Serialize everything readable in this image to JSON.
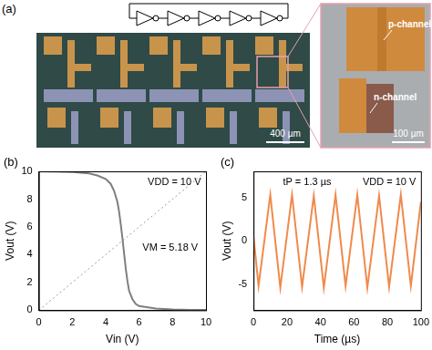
{
  "panel_a": {
    "label": "(a)",
    "inverters": 5,
    "main_scale_bar": "400 µm",
    "inset_scale_bar": "100 µm",
    "inset_labels": [
      "p-channel",
      "n-channel"
    ]
  },
  "chart_data": [
    {
      "type": "line",
      "panel_label": "(b)",
      "x_label": "Vin (V)",
      "y_label": "Vout (V)",
      "annotations": [
        "VDD = 10 V",
        "VM = 5.18 V"
      ],
      "xlim": [
        0,
        10
      ],
      "ylim": [
        0,
        10
      ],
      "xticks": [
        0,
        2,
        4,
        6,
        8,
        10
      ],
      "yticks": [
        0,
        2,
        4,
        6,
        8,
        10
      ],
      "grid": false,
      "series": [
        {
          "color": "#7f7f7f",
          "line_style": "solid",
          "x": [
            0,
            1,
            2,
            3,
            3.5,
            4,
            4.3,
            4.5,
            4.7,
            4.8,
            4.9,
            5.0,
            5.1,
            5.2,
            5.3,
            5.4,
            5.6,
            5.8,
            6,
            7,
            8,
            9,
            10
          ],
          "values": [
            10,
            9.98,
            9.95,
            9.85,
            9.7,
            9.45,
            9.1,
            8.6,
            7.8,
            7.1,
            6.2,
            5.2,
            4.1,
            3.0,
            2.1,
            1.4,
            0.8,
            0.45,
            0.3,
            0.12,
            0.06,
            0.03,
            0.02
          ]
        },
        {
          "color": "#9a9a9a",
          "line_style": "dotted",
          "x": [
            0,
            10
          ],
          "values": [
            0,
            10
          ]
        }
      ]
    },
    {
      "type": "line",
      "panel_label": "(c)",
      "x_label": "Time (µs)",
      "y_label": "Vout (V)",
      "annotations": [
        "tP = 1.3 µs",
        "VDD = 10 V"
      ],
      "xlim": [
        0,
        100
      ],
      "ylim": [
        -8,
        8
      ],
      "xticks": [
        0,
        20,
        40,
        60,
        80,
        100
      ],
      "yticks": [
        -5,
        0,
        5
      ],
      "grid": false,
      "series": [
        {
          "color": "#f08a4b",
          "line_style": "solid",
          "x": [
            0,
            3,
            10,
            16,
            23,
            29,
            36,
            42,
            49,
            55,
            62,
            68,
            75,
            81,
            88,
            94,
            100
          ],
          "values": [
            0.5,
            -5.2,
            5.3,
            -5.4,
            5.3,
            -5.3,
            5.2,
            -5.4,
            5.3,
            -5.2,
            5.3,
            -5.4,
            5.2,
            -5.3,
            5.3,
            -5.2,
            4.5
          ]
        }
      ]
    }
  ]
}
